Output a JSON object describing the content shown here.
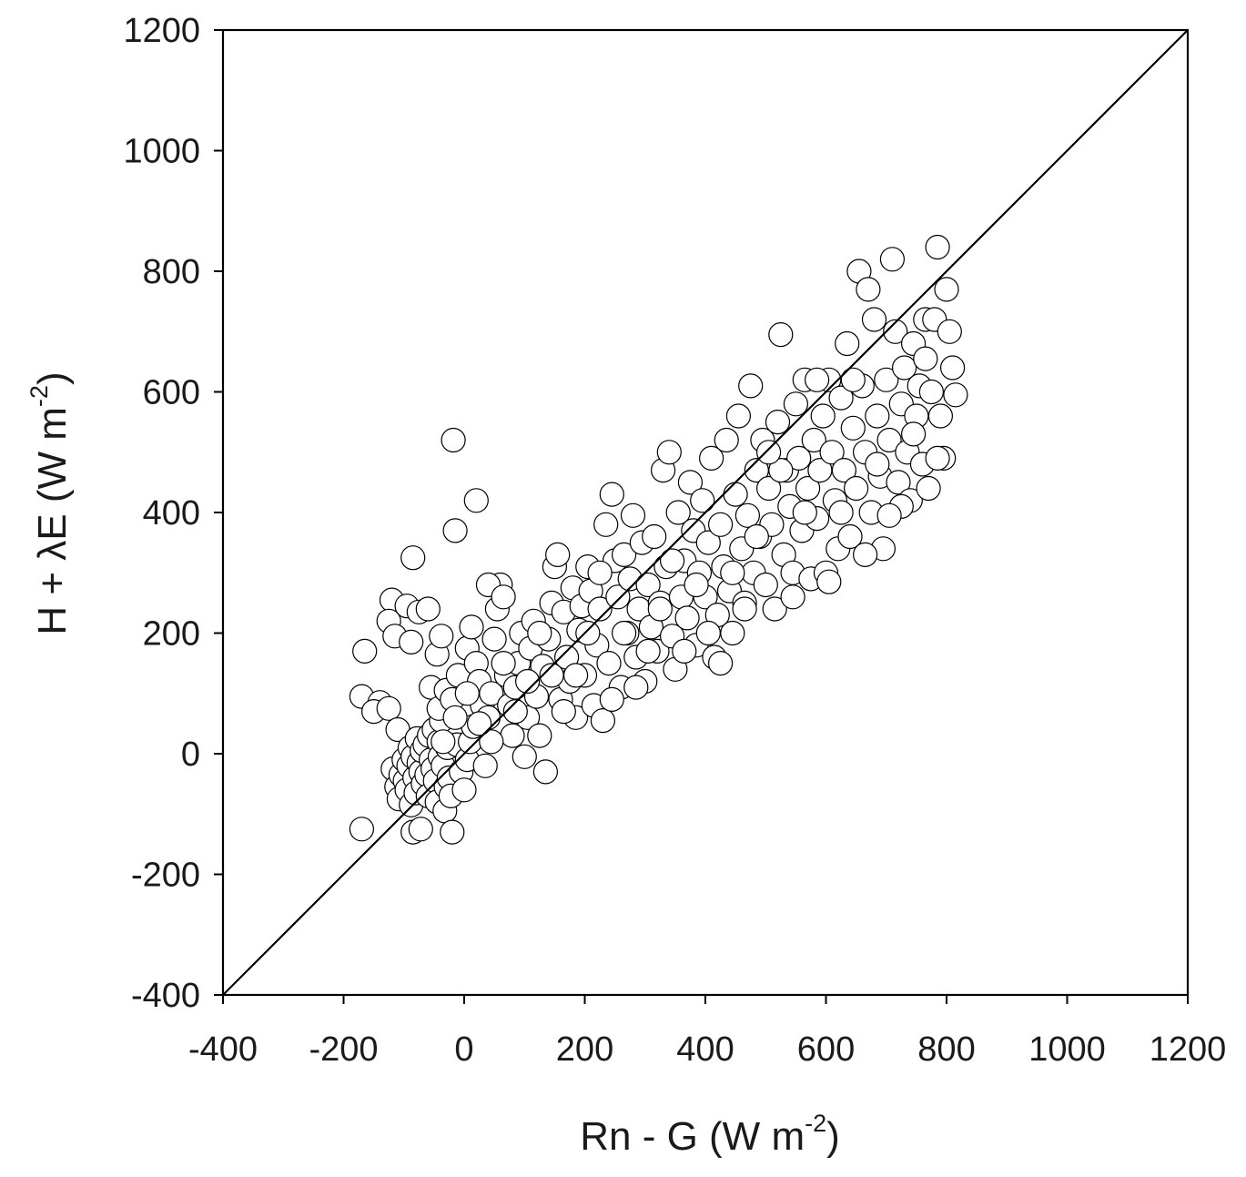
{
  "chart_data": {
    "type": "scatter",
    "title": "",
    "xlabel": {
      "main": "Rn - G (W m",
      "sup": "-2",
      "close": ")"
    },
    "ylabel": {
      "main": "H + λE (W m",
      "sup": "-2",
      "close": ")"
    },
    "xlim": [
      -400,
      1200
    ],
    "ylim": [
      -400,
      1200
    ],
    "xticks": [
      -400,
      -200,
      0,
      200,
      400,
      600,
      800,
      1000,
      1200
    ],
    "yticks": [
      -400,
      -200,
      0,
      200,
      400,
      600,
      800,
      1000,
      1200
    ],
    "xtick_labels": [
      "-400",
      "-200",
      "0",
      "200",
      "400",
      "600",
      "800",
      "1000",
      "1200"
    ],
    "ytick_labels": [
      "-400",
      "-200",
      "0",
      "200",
      "400",
      "600",
      "800",
      "1000",
      "1200"
    ],
    "grid": false,
    "legend": "none",
    "marker": {
      "shape": "circle",
      "fill": "#ffffff",
      "stroke": "#000000"
    },
    "reference_line": {
      "kind": "1:1",
      "from": [
        -400,
        -400
      ],
      "to": [
        1200,
        1200
      ],
      "color": "#000000"
    },
    "series": [
      {
        "points": [
          [
            -170,
            -125
          ],
          [
            -165,
            170
          ],
          [
            -170,
            95
          ],
          [
            -140,
            85
          ],
          [
            -150,
            70
          ],
          [
            -120,
            255
          ],
          [
            -125,
            220
          ],
          [
            -115,
            195
          ],
          [
            -125,
            75
          ],
          [
            -110,
            40
          ],
          [
            -118,
            -25
          ],
          [
            -112,
            -55
          ],
          [
            -108,
            -75
          ],
          [
            -105,
            -35
          ],
          [
            -100,
            -10
          ],
          [
            -98,
            -45
          ],
          [
            -95,
            -60
          ],
          [
            -92,
            -20
          ],
          [
            -90,
            10
          ],
          [
            -88,
            -85
          ],
          [
            -85,
            -5
          ],
          [
            -82,
            -40
          ],
          [
            -80,
            -65
          ],
          [
            -78,
            25
          ],
          [
            -75,
            -15
          ],
          [
            -72,
            -30
          ],
          [
            -70,
            5
          ],
          [
            -68,
            -50
          ],
          [
            -65,
            15
          ],
          [
            -62,
            -35
          ],
          [
            -60,
            -70
          ],
          [
            -58,
            30
          ],
          [
            -55,
            -10
          ],
          [
            -52,
            -25
          ],
          [
            -50,
            40
          ],
          [
            -48,
            -45
          ],
          [
            -45,
            -80
          ],
          [
            -42,
            20
          ],
          [
            -40,
            -5
          ],
          [
            -38,
            55
          ],
          [
            -35,
            -20
          ],
          [
            -32,
            -95
          ],
          [
            -30,
            -55
          ],
          [
            -28,
            10
          ],
          [
            -25,
            -40
          ],
          [
            -22,
            -70
          ],
          [
            -20,
            -130
          ],
          [
            -85,
            -130
          ],
          [
            -72,
            -125
          ],
          [
            -85,
            325
          ],
          [
            -95,
            245
          ],
          [
            -88,
            185
          ],
          [
            -75,
            235
          ],
          [
            -60,
            240
          ],
          [
            -45,
            165
          ],
          [
            -38,
            195
          ],
          [
            -55,
            110
          ],
          [
            -42,
            75
          ],
          [
            -30,
            105
          ],
          [
            -20,
            90
          ],
          [
            -10,
            130
          ],
          [
            -18,
            520
          ],
          [
            -15,
            370
          ],
          [
            20,
            420
          ],
          [
            -12,
            15
          ],
          [
            -5,
            -30
          ],
          [
            0,
            -60
          ],
          [
            5,
            -10
          ],
          [
            10,
            20
          ],
          [
            15,
            45
          ],
          [
            5,
            175
          ],
          [
            12,
            210
          ],
          [
            20,
            150
          ],
          [
            25,
            120
          ],
          [
            30,
            80
          ],
          [
            35,
            -20
          ],
          [
            40,
            60
          ],
          [
            45,
            100
          ],
          [
            50,
            190
          ],
          [
            55,
            240
          ],
          [
            60,
            280
          ],
          [
            40,
            280
          ],
          [
            65,
            260
          ],
          [
            70,
            130
          ],
          [
            75,
            80
          ],
          [
            80,
            30
          ],
          [
            85,
            110
          ],
          [
            90,
            150
          ],
          [
            95,
            200
          ],
          [
            100,
            -5
          ],
          [
            105,
            60
          ],
          [
            110,
            175
          ],
          [
            115,
            220
          ],
          [
            120,
            95
          ],
          [
            125,
            30
          ],
          [
            130,
            145
          ],
          [
            135,
            -30
          ],
          [
            140,
            190
          ],
          [
            145,
            250
          ],
          [
            150,
            310
          ],
          [
            155,
            330
          ],
          [
            160,
            90
          ],
          [
            165,
            235
          ],
          [
            170,
            160
          ],
          [
            175,
            120
          ],
          [
            180,
            275
          ],
          [
            185,
            60
          ],
          [
            190,
            205
          ],
          [
            195,
            245
          ],
          [
            200,
            130
          ],
          [
            205,
            310
          ],
          [
            210,
            270
          ],
          [
            215,
            80
          ],
          [
            220,
            180
          ],
          [
            225,
            240
          ],
          [
            230,
            55
          ],
          [
            235,
            380
          ],
          [
            240,
            150
          ],
          [
            245,
            430
          ],
          [
            250,
            320
          ],
          [
            255,
            260
          ],
          [
            260,
            110
          ],
          [
            265,
            330
          ],
          [
            270,
            200
          ],
          [
            275,
            290
          ],
          [
            280,
            395
          ],
          [
            285,
            160
          ],
          [
            290,
            240
          ],
          [
            295,
            350
          ],
          [
            300,
            120
          ],
          [
            305,
            280
          ],
          [
            310,
            210
          ],
          [
            315,
            360
          ],
          [
            320,
            170
          ],
          [
            325,
            250
          ],
          [
            330,
            470
          ],
          [
            335,
            310
          ],
          [
            340,
            500
          ],
          [
            345,
            195
          ],
          [
            350,
            140
          ],
          [
            355,
            400
          ],
          [
            360,
            260
          ],
          [
            365,
            320
          ],
          [
            370,
            225
          ],
          [
            375,
            450
          ],
          [
            380,
            370
          ],
          [
            385,
            180
          ],
          [
            390,
            300
          ],
          [
            395,
            420
          ],
          [
            400,
            260
          ],
          [
            405,
            350
          ],
          [
            410,
            490
          ],
          [
            415,
            160
          ],
          [
            420,
            230
          ],
          [
            425,
            380
          ],
          [
            430,
            310
          ],
          [
            435,
            520
          ],
          [
            440,
            270
          ],
          [
            445,
            200
          ],
          [
            450,
            430
          ],
          [
            455,
            560
          ],
          [
            460,
            340
          ],
          [
            465,
            250
          ],
          [
            470,
            395
          ],
          [
            475,
            610
          ],
          [
            480,
            300
          ],
          [
            485,
            470
          ],
          [
            490,
            360
          ],
          [
            495,
            520
          ],
          [
            500,
            280
          ],
          [
            505,
            440
          ],
          [
            510,
            380
          ],
          [
            515,
            240
          ],
          [
            520,
            550
          ],
          [
            525,
            695
          ],
          [
            530,
            330
          ],
          [
            535,
            470
          ],
          [
            540,
            410
          ],
          [
            545,
            300
          ],
          [
            550,
            580
          ],
          [
            555,
            490
          ],
          [
            560,
            370
          ],
          [
            565,
            620
          ],
          [
            570,
            440
          ],
          [
            575,
            290
          ],
          [
            580,
            520
          ],
          [
            585,
            390
          ],
          [
            590,
            470
          ],
          [
            595,
            560
          ],
          [
            600,
            300
          ],
          [
            605,
            620
          ],
          [
            610,
            500
          ],
          [
            615,
            420
          ],
          [
            620,
            340
          ],
          [
            625,
            590
          ],
          [
            630,
            470
          ],
          [
            635,
            680
          ],
          [
            640,
            360
          ],
          [
            645,
            540
          ],
          [
            650,
            440
          ],
          [
            655,
            800
          ],
          [
            660,
            610
          ],
          [
            665,
            500
          ],
          [
            670,
            770
          ],
          [
            675,
            400
          ],
          [
            680,
            720
          ],
          [
            685,
            560
          ],
          [
            690,
            460
          ],
          [
            695,
            340
          ],
          [
            700,
            620
          ],
          [
            705,
            520
          ],
          [
            710,
            820
          ],
          [
            715,
            700
          ],
          [
            720,
            450
          ],
          [
            725,
            580
          ],
          [
            730,
            640
          ],
          [
            735,
            500
          ],
          [
            740,
            420
          ],
          [
            745,
            680
          ],
          [
            750,
            560
          ],
          [
            755,
            610
          ],
          [
            760,
            480
          ],
          [
            765,
            720
          ],
          [
            770,
            440
          ],
          [
            775,
            600
          ],
          [
            780,
            720
          ],
          [
            785,
            840
          ],
          [
            790,
            560
          ],
          [
            795,
            490
          ],
          [
            800,
            770
          ],
          [
            805,
            700
          ],
          [
            810,
            640
          ],
          [
            815,
            595
          ],
          [
            785,
            490
          ],
          [
            765,
            655
          ],
          [
            745,
            530
          ],
          [
            725,
            410
          ],
          [
            705,
            395
          ],
          [
            685,
            480
          ],
          [
            665,
            330
          ],
          [
            645,
            620
          ],
          [
            625,
            400
          ],
          [
            605,
            285
          ],
          [
            585,
            620
          ],
          [
            565,
            400
          ],
          [
            545,
            260
          ],
          [
            525,
            470
          ],
          [
            505,
            500
          ],
          [
            485,
            360
          ],
          [
            465,
            240
          ],
          [
            445,
            300
          ],
          [
            425,
            150
          ],
          [
            405,
            200
          ],
          [
            385,
            280
          ],
          [
            365,
            170
          ],
          [
            345,
            320
          ],
          [
            325,
            240
          ],
          [
            305,
            170
          ],
          [
            285,
            110
          ],
          [
            265,
            200
          ],
          [
            245,
            90
          ],
          [
            225,
            300
          ],
          [
            205,
            200
          ],
          [
            185,
            130
          ],
          [
            165,
            70
          ],
          [
            145,
            130
          ],
          [
            125,
            200
          ],
          [
            105,
            120
          ],
          [
            85,
            70
          ],
          [
            65,
            150
          ],
          [
            45,
            20
          ],
          [
            25,
            50
          ],
          [
            5,
            100
          ],
          [
            -15,
            60
          ],
          [
            -35,
            20
          ]
        ]
      }
    ]
  }
}
